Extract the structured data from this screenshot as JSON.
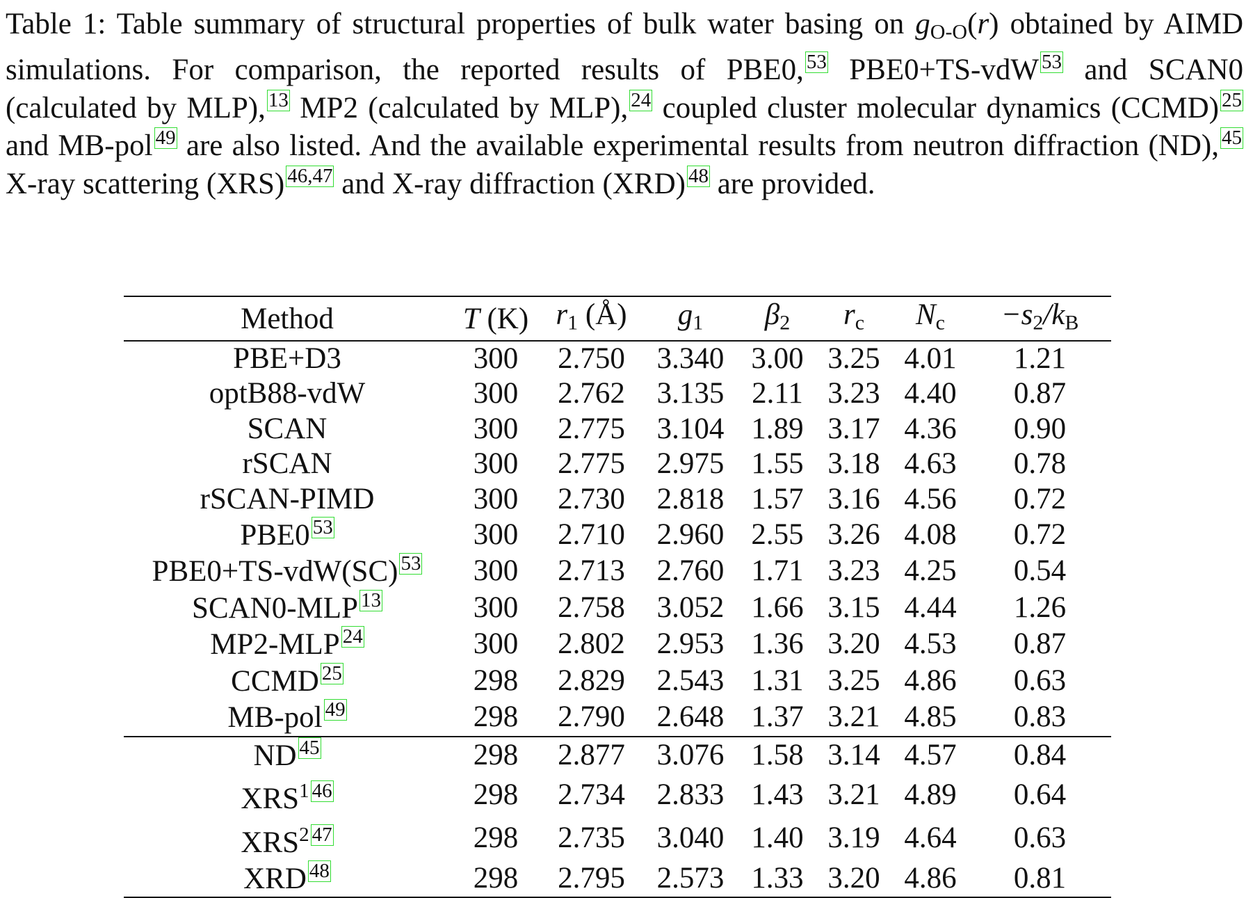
{
  "caption": {
    "label": "Table 1:",
    "t1": "Table summary of structural properties of bulk water basing on",
    "t2": "obtained by AIMD simulations. For comparison, the reported results of PBE0,",
    "t3": "PBE0+TS-vdW",
    "t4": "and SCAN0 (calculated by MLP),",
    "t5": "MP2 (calculated by MLP),",
    "t6": "coupled cluster molecular dynamics (CCMD)",
    "t7": "and MB-pol",
    "t8": "are also listed. And the available experimental results from neutron diffraction (ND),",
    "t9": "X-ray scattering (XRS)",
    "t10": "and X-ray diffraction (XRD)",
    "t11": "are provided.",
    "cites": [
      "53",
      "53",
      "13",
      "24",
      "25",
      "49",
      "45",
      "46,47",
      "48"
    ]
  },
  "table": {
    "headers": [
      "Method",
      "T",
      "(K)",
      "r",
      "1",
      "(Å)",
      "g",
      "1",
      "β",
      "2",
      "r",
      "c",
      "N",
      "c",
      "−s",
      "2",
      "/k",
      "B"
    ],
    "rows": [
      {
        "method": "PBE+D3",
        "cite": "",
        "sup": "",
        "T": "300",
        "r1": "2.750",
        "g1": "3.340",
        "b2": "3.00",
        "rc": "3.25",
        "nc": "4.01",
        "s2": "1.21"
      },
      {
        "method": "optB88-vdW",
        "cite": "",
        "sup": "",
        "T": "300",
        "r1": "2.762",
        "g1": "3.135",
        "b2": "2.11",
        "rc": "3.23",
        "nc": "4.40",
        "s2": "0.87"
      },
      {
        "method": "SCAN",
        "cite": "",
        "sup": "",
        "T": "300",
        "r1": "2.775",
        "g1": "3.104",
        "b2": "1.89",
        "rc": "3.17",
        "nc": "4.36",
        "s2": "0.90"
      },
      {
        "method": "rSCAN",
        "cite": "",
        "sup": "",
        "T": "300",
        "r1": "2.775",
        "g1": "2.975",
        "b2": "1.55",
        "rc": "3.18",
        "nc": "4.63",
        "s2": "0.78"
      },
      {
        "method": "rSCAN-PIMD",
        "cite": "",
        "sup": "",
        "T": "300",
        "r1": "2.730",
        "g1": "2.818",
        "b2": "1.57",
        "rc": "3.16",
        "nc": "4.56",
        "s2": "0.72"
      },
      {
        "method": "PBE0",
        "cite": "53",
        "sup": "",
        "T": "300",
        "r1": "2.710",
        "g1": "2.960",
        "b2": "2.55",
        "rc": "3.26",
        "nc": "4.08",
        "s2": "0.72"
      },
      {
        "method": "PBE0+TS-vdW(SC)",
        "cite": "53",
        "sup": "",
        "T": "300",
        "r1": "2.713",
        "g1": "2.760",
        "b2": "1.71",
        "rc": "3.23",
        "nc": "4.25",
        "s2": "0.54"
      },
      {
        "method": "SCAN0-MLP",
        "cite": "13",
        "sup": "",
        "T": "300",
        "r1": "2.758",
        "g1": "3.052",
        "b2": "1.66",
        "rc": "3.15",
        "nc": "4.44",
        "s2": "1.26"
      },
      {
        "method": "MP2-MLP",
        "cite": "24",
        "sup": "",
        "T": "300",
        "r1": "2.802",
        "g1": "2.953",
        "b2": "1.36",
        "rc": "3.20",
        "nc": "4.53",
        "s2": "0.87"
      },
      {
        "method": "CCMD",
        "cite": "25",
        "sup": "",
        "T": "298",
        "r1": "2.829",
        "g1": "2.543",
        "b2": "1.31",
        "rc": "3.25",
        "nc": "4.86",
        "s2": "0.63"
      },
      {
        "method": "MB-pol",
        "cite": "49",
        "sup": "",
        "T": "298",
        "r1": "2.790",
        "g1": "2.648",
        "b2": "1.37",
        "rc": "3.21",
        "nc": "4.85",
        "s2": "0.83"
      },
      {
        "method": "ND",
        "cite": "45",
        "sup": "",
        "T": "298",
        "r1": "2.877",
        "g1": "3.076",
        "b2": "1.58",
        "rc": "3.14",
        "nc": "4.57",
        "s2": "0.84"
      },
      {
        "method": "XRS",
        "cite": "46",
        "sup": "1",
        "T": "298",
        "r1": "2.734",
        "g1": "2.833",
        "b2": "1.43",
        "rc": "3.21",
        "nc": "4.89",
        "s2": "0.64"
      },
      {
        "method": "XRS",
        "cite": "47",
        "sup": "2",
        "T": "298",
        "r1": "2.735",
        "g1": "3.040",
        "b2": "1.40",
        "rc": "3.19",
        "nc": "4.64",
        "s2": "0.63"
      },
      {
        "method": "XRD",
        "cite": "48",
        "sup": "",
        "T": "298",
        "r1": "2.795",
        "g1": "2.573",
        "b2": "1.33",
        "rc": "3.20",
        "nc": "4.86",
        "s2": "0.81"
      }
    ]
  }
}
